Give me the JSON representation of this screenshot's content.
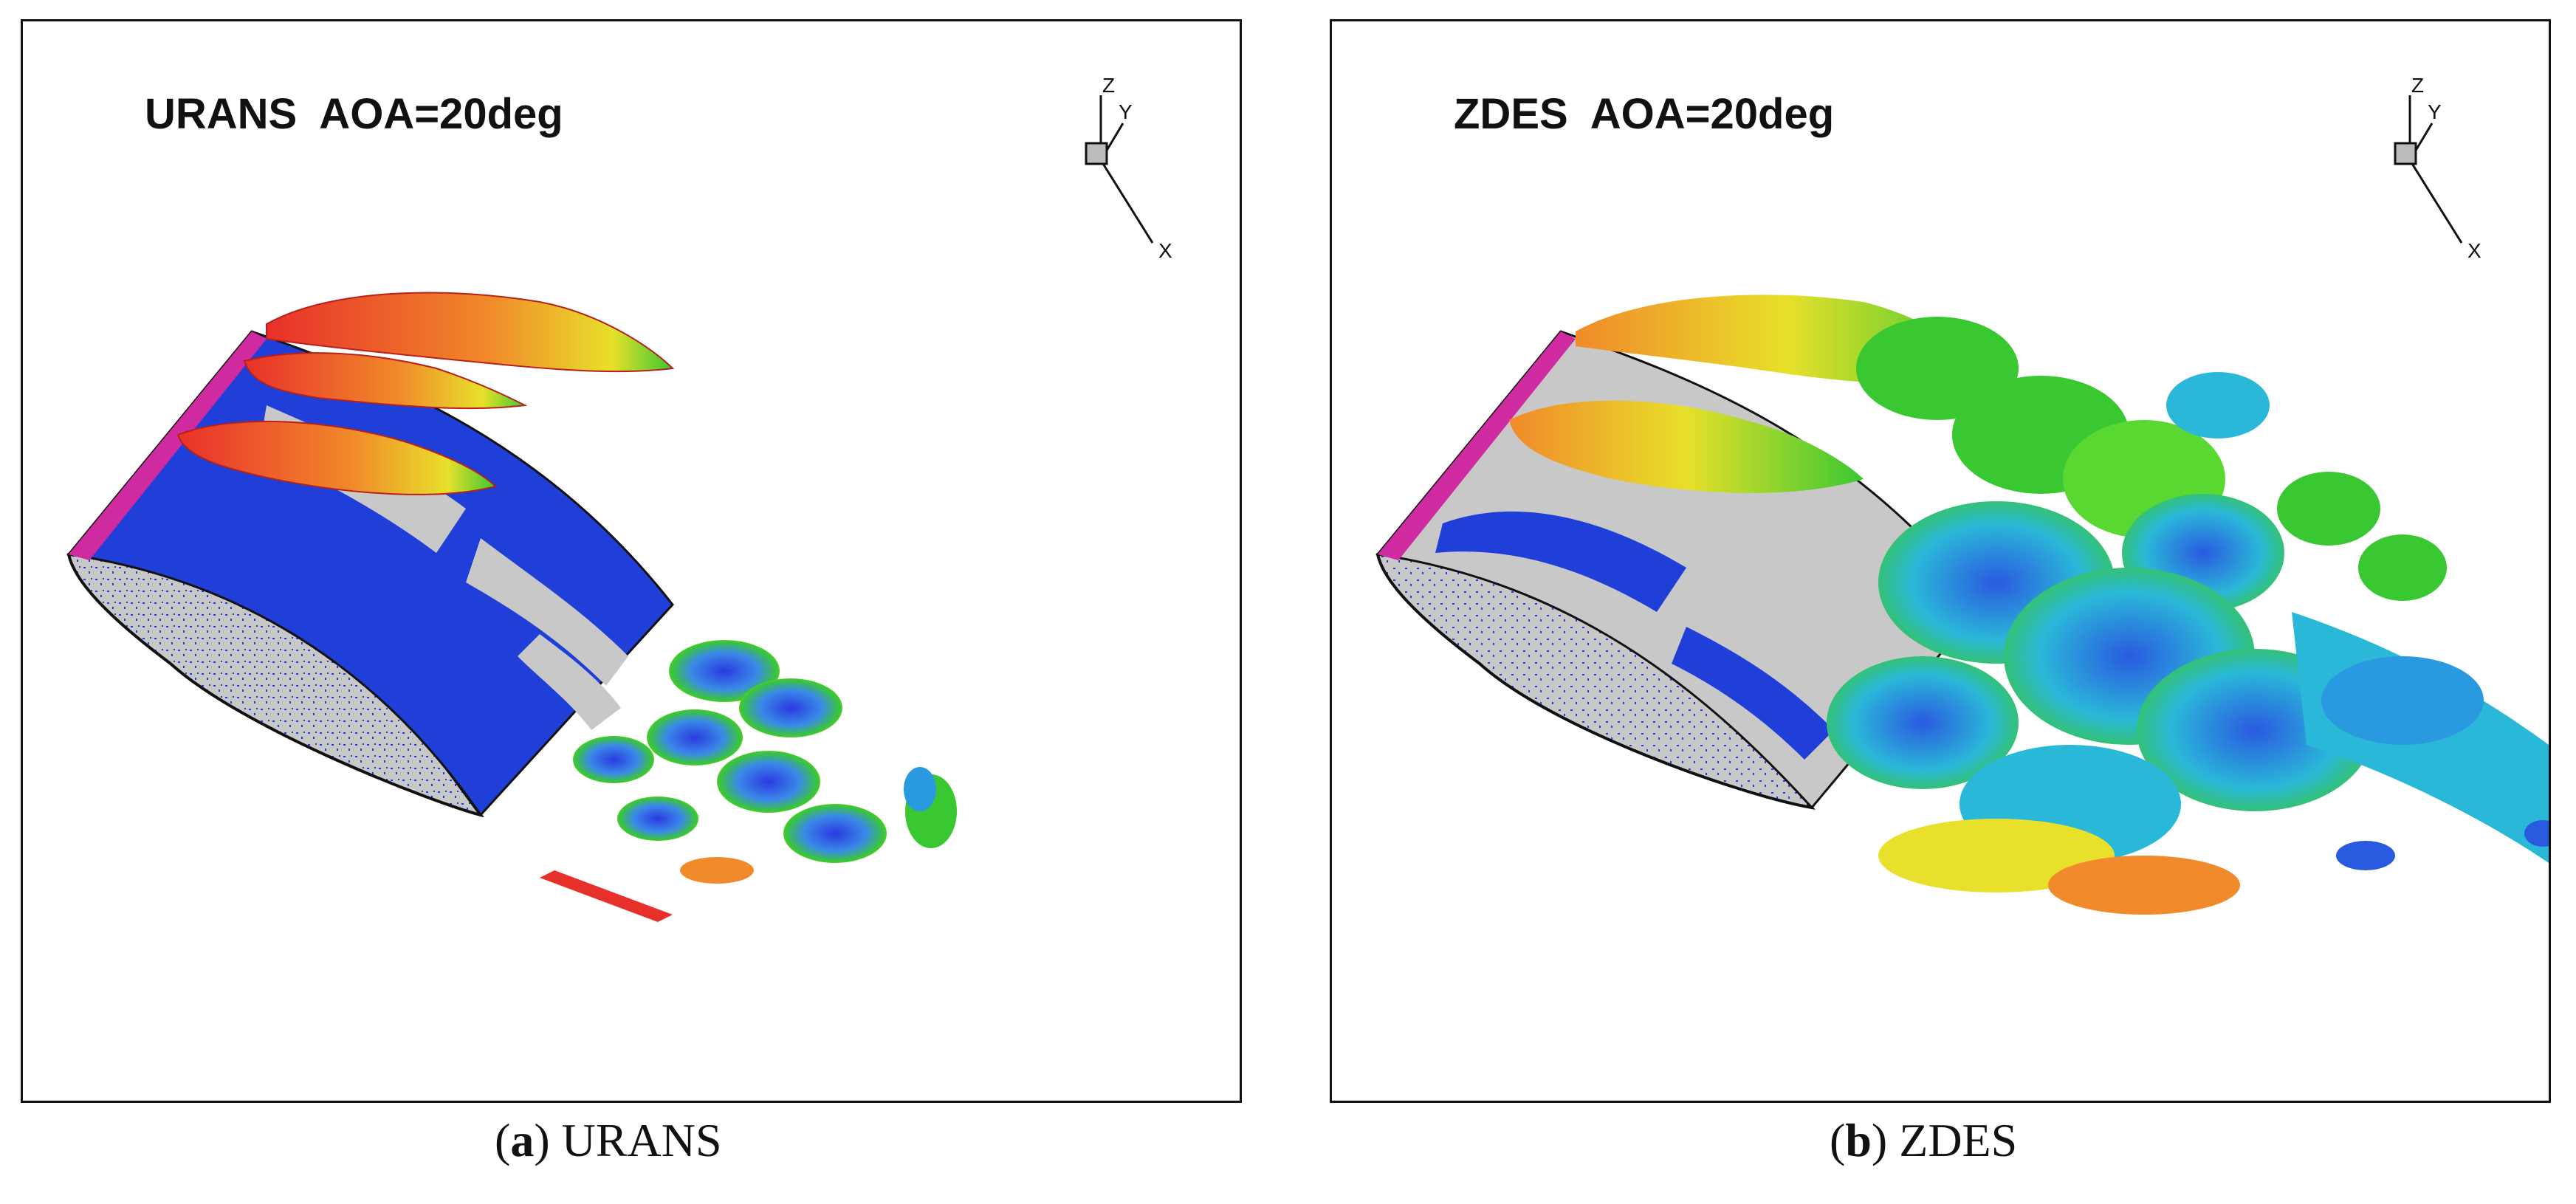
{
  "panels": [
    {
      "title": "URANS  AOA=20deg",
      "axes": {
        "z": "Z",
        "y": "Y",
        "x": "X"
      },
      "caption": {
        "letter": "a",
        "text": "URANS"
      }
    },
    {
      "title": "ZDES  AOA=20deg",
      "axes": {
        "z": "Z",
        "y": "Y",
        "x": "X"
      },
      "caption": {
        "letter": "b",
        "text": "ZDES"
      }
    }
  ],
  "colors": {
    "surface_blue": "#1f3fd8",
    "surface_grey": "#c8c8c8",
    "vortex_red": "#e8382a",
    "vortex_orange": "#f08a2a",
    "vortex_yellow": "#e8e02a",
    "vortex_green": "#3ac832",
    "vortex_cyan": "#2ab8d8",
    "vortex_blue": "#2a5ae0",
    "edge_magenta": "#d02aa0"
  }
}
